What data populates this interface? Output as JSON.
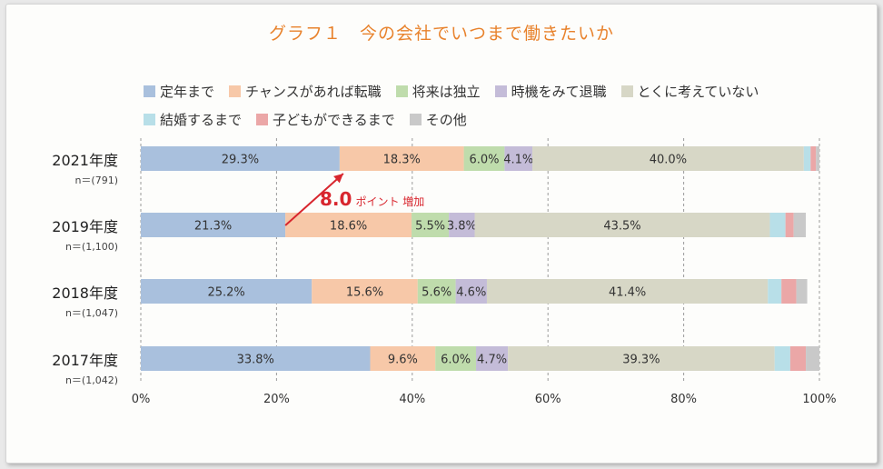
{
  "title": "グラフ１　今の会社でいつまで働きたいか",
  "annotation": {
    "value": "8.0",
    "text": "ポイント 増加"
  },
  "chart_data": {
    "type": "stacked-bar-horizontal",
    "title": "グラフ１　今の会社でいつまで働きたいか",
    "xlim": [
      0,
      100
    ],
    "x_ticks": [
      "0%",
      "20%",
      "40%",
      "60%",
      "80%",
      "100%"
    ],
    "grid": "vertical dashed",
    "legend_position": "top",
    "series": [
      {
        "name": "定年まで",
        "color": "#a9c0dd"
      },
      {
        "name": "チャンスがあれば転職",
        "color": "#f7c8a8"
      },
      {
        "name": "将来は独立",
        "color": "#bfdcac"
      },
      {
        "name": "時機をみて退職",
        "color": "#c4bcd8"
      },
      {
        "name": "とくに考えていない",
        "color": "#d7d7c6"
      },
      {
        "name": "結婚するまで",
        "color": "#b8dfe8"
      },
      {
        "name": "子どもができるまで",
        "color": "#eba7a7"
      },
      {
        "name": "その他",
        "color": "#c9c9c9"
      }
    ],
    "bars": [
      {
        "label": "2021年度",
        "n": "n＝(791)",
        "values": [
          29.3,
          18.3,
          6.0,
          4.1,
          40.0,
          1.0,
          0.8,
          0.5
        ],
        "labels": [
          "29.3%",
          "18.3%",
          "6.0%",
          "4.1%",
          "40.0%",
          "",
          "",
          ""
        ]
      },
      {
        "label": "2019年度",
        "n": "n＝(1,100)",
        "values": [
          21.3,
          18.6,
          5.5,
          3.8,
          43.5,
          2.3,
          1.2,
          1.8
        ],
        "labels": [
          "21.3%",
          "18.6%",
          "5.5%",
          "3.8%",
          "43.5%",
          "",
          "",
          ""
        ]
      },
      {
        "label": "2018年度",
        "n": "n＝(1,047)",
        "values": [
          25.2,
          15.6,
          5.6,
          4.6,
          41.4,
          2.0,
          2.2,
          1.6
        ],
        "labels": [
          "25.2%",
          "15.6%",
          "5.6%",
          "4.6%",
          "41.4%",
          "",
          "",
          ""
        ]
      },
      {
        "label": "2017年度",
        "n": "n＝(1,042)",
        "values": [
          33.8,
          9.6,
          6.0,
          4.7,
          39.3,
          2.3,
          2.3,
          2.0
        ],
        "labels": [
          "33.8%",
          "9.6%",
          "6.0%",
          "4.7%",
          "39.3%",
          "",
          "",
          ""
        ]
      }
    ]
  }
}
